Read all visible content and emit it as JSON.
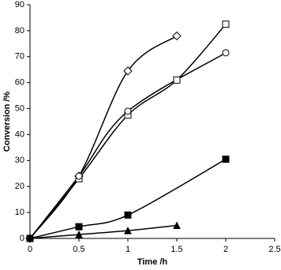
{
  "chart_data": {
    "type": "line",
    "x_label": "Time /h",
    "y_label": "Conversion /%",
    "xlim": [
      0,
      2.5
    ],
    "xticks": [
      0,
      0.5,
      1,
      1.5,
      2,
      2.5
    ],
    "ylim": [
      0,
      90
    ],
    "yticks": [
      0,
      10,
      20,
      30,
      40,
      50,
      60,
      70,
      80,
      90
    ],
    "grid": false,
    "series": [
      {
        "marker": "diamond",
        "filled": false,
        "color": "#000000",
        "x": [
          0,
          0.5,
          1,
          1.5
        ],
        "values": [
          0,
          24,
          64.5,
          78
        ]
      },
      {
        "marker": "square",
        "filled": false,
        "color": "#000000",
        "x": [
          0,
          0.5,
          1,
          1.5,
          2
        ],
        "values": [
          0,
          23,
          47.5,
          61,
          82.5
        ]
      },
      {
        "marker": "circle",
        "filled": false,
        "color": "#000000",
        "x": [
          0,
          0.5,
          1,
          2
        ],
        "values": [
          0,
          24,
          49,
          71.5
        ]
      },
      {
        "marker": "square",
        "filled": true,
        "color": "#000000",
        "x": [
          0,
          0.5,
          1,
          2
        ],
        "values": [
          0,
          4.5,
          9,
          30.5
        ]
      },
      {
        "marker": "triangle",
        "filled": true,
        "color": "#000000",
        "x": [
          0,
          0.5,
          1,
          1.5
        ],
        "values": [
          0,
          1.5,
          3,
          5
        ]
      }
    ]
  }
}
